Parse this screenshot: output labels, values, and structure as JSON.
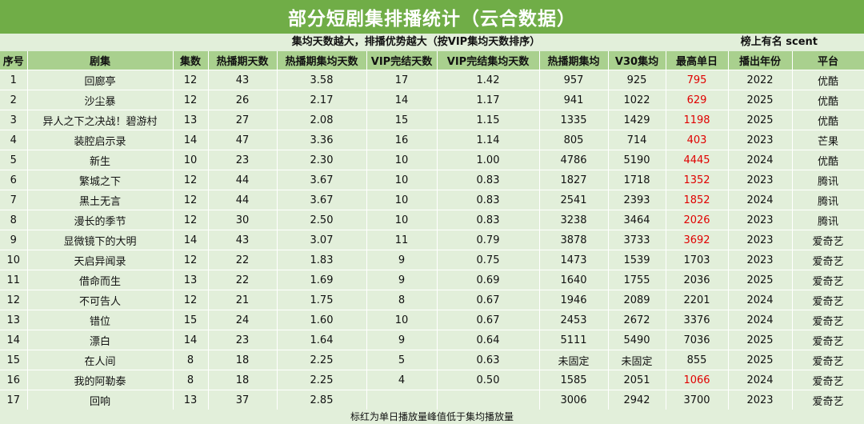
{
  "title": "部分短剧集排播统计（云合数据）",
  "subtitle": "集均天数越大，排播优势越大（按VIP集均天数排序）",
  "right_note": "榜上有名   scent",
  "columns": [
    "序号",
    "剧集",
    "集数",
    "热播期天数",
    "热播期集均天数",
    "VIP完结天数",
    "VIP完结集均天数",
    "热播期集均",
    "V30集均",
    "最高单日",
    "播出年份",
    "平台"
  ],
  "rows": [
    [
      "1",
      "回廊亭",
      "12",
      "43",
      "3.58",
      "17",
      "1.42",
      "957",
      "925",
      "795",
      "2022",
      "优酷"
    ],
    [
      "2",
      "沙尘暴",
      "12",
      "26",
      "2.17",
      "14",
      "1.17",
      "941",
      "1022",
      "629",
      "2025",
      "优酷"
    ],
    [
      "3",
      "异人之下之决战！碧游村",
      "13",
      "27",
      "2.08",
      "15",
      "1.15",
      "1335",
      "1429",
      "1198",
      "2025",
      "优酷"
    ],
    [
      "4",
      "装腔启示录",
      "14",
      "47",
      "3.36",
      "16",
      "1.14",
      "805",
      "714",
      "403",
      "2023",
      "芒果"
    ],
    [
      "5",
      "新生",
      "10",
      "23",
      "2.30",
      "10",
      "1.00",
      "4786",
      "5190",
      "4445",
      "2024",
      "优酷"
    ],
    [
      "6",
      "繁城之下",
      "12",
      "44",
      "3.67",
      "10",
      "0.83",
      "1827",
      "1718",
      "1352",
      "2023",
      "腾讯"
    ],
    [
      "7",
      "黑土无言",
      "12",
      "44",
      "3.67",
      "10",
      "0.83",
      "2541",
      "2393",
      "1852",
      "2024",
      "腾讯"
    ],
    [
      "8",
      "漫长的季节",
      "12",
      "30",
      "2.50",
      "10",
      "0.83",
      "3238",
      "3464",
      "2026",
      "2023",
      "腾讯"
    ],
    [
      "9",
      "显微镜下的大明",
      "14",
      "43",
      "3.07",
      "11",
      "0.79",
      "3878",
      "3733",
      "3692",
      "2023",
      "爱奇艺"
    ],
    [
      "10",
      "天启异闻录",
      "12",
      "22",
      "1.83",
      "9",
      "0.75",
      "1473",
      "1539",
      "1703",
      "2023",
      "爱奇艺"
    ],
    [
      "11",
      "借命而生",
      "13",
      "22",
      "1.69",
      "9",
      "0.69",
      "1640",
      "1755",
      "2036",
      "2025",
      "爱奇艺"
    ],
    [
      "12",
      "不可告人",
      "12",
      "21",
      "1.75",
      "8",
      "0.67",
      "1946",
      "2089",
      "2201",
      "2024",
      "爱奇艺"
    ],
    [
      "13",
      "错位",
      "15",
      "24",
      "1.60",
      "10",
      "0.67",
      "2453",
      "2672",
      "3376",
      "2024",
      "爱奇艺"
    ],
    [
      "14",
      "漂白",
      "14",
      "23",
      "1.64",
      "9",
      "0.64",
      "5111",
      "5490",
      "7036",
      "2025",
      "爱奇艺"
    ],
    [
      "15",
      "在人间",
      "8",
      "18",
      "2.25",
      "5",
      "0.63",
      "未固定",
      "未固定",
      "855",
      "2025",
      "爱奇艺"
    ],
    [
      "16",
      "我的阿勒泰",
      "8",
      "18",
      "2.25",
      "4",
      "0.50",
      "1585",
      "2051",
      "1066",
      "2024",
      "爱奇艺"
    ],
    [
      "17",
      "回响",
      "13",
      "37",
      "2.85",
      "",
      "",
      "3006",
      "2942",
      "3700",
      "2023",
      "爱奇艺"
    ]
  ],
  "red_peak_rows": [
    0,
    1,
    2,
    3,
    4,
    5,
    6,
    7,
    8,
    15
  ],
  "colors": {
    "header_green": "#70ad47",
    "column_header": "#a9d08e",
    "row_bg": "#e2efda",
    "highlight_red": "#e00000"
  },
  "footer": "标红为单日播放量峰值低于集均播放量"
}
